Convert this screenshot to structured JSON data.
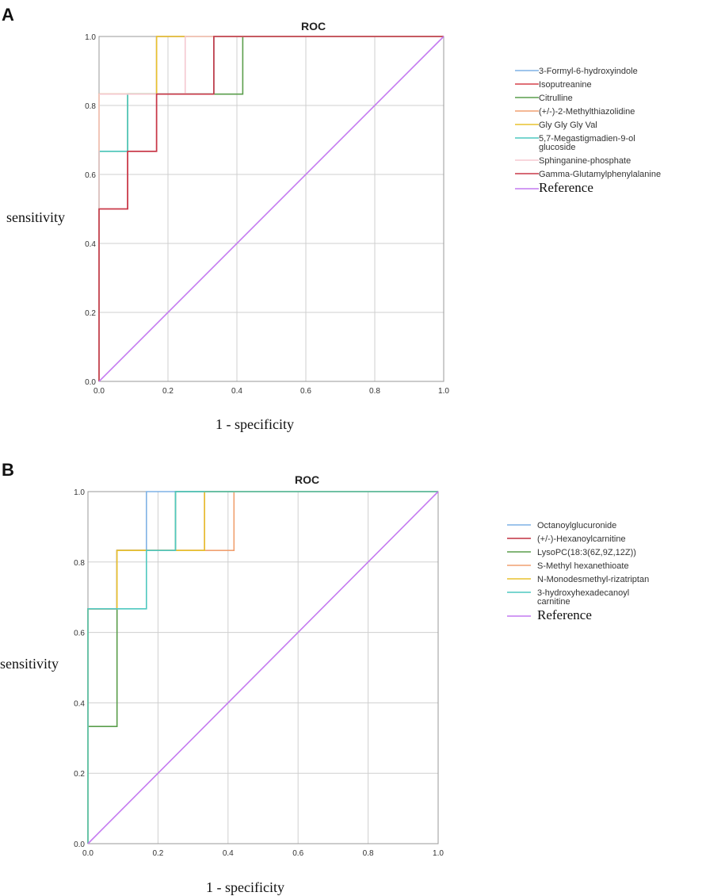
{
  "chart_data": [
    {
      "panel": "A",
      "type": "line",
      "title": "ROC",
      "xlabel": "1 - specificity",
      "ylabel": "sensitivity",
      "xlim": [
        0,
        1
      ],
      "ylim": [
        0,
        1
      ],
      "ticks": [
        "0.0",
        "0.2",
        "0.4",
        "0.6",
        "0.8",
        "1.0"
      ],
      "grid": true,
      "legend_position": "right",
      "series": [
        {
          "name": "3-Formyl-6-hydroxyindole",
          "color": "#7fb2e5",
          "x": [
            0,
            0,
            0.167,
            0.167,
            1
          ],
          "y": [
            0,
            0.833,
            0.833,
            1,
            1
          ]
        },
        {
          "name": "Isoputreanine",
          "color": "#d6404a",
          "x": [
            0,
            0,
            0.083,
            0.083,
            0.167,
            0.167,
            0.333,
            0.333,
            1
          ],
          "y": [
            0,
            0.5,
            0.5,
            0.667,
            0.667,
            0.833,
            0.833,
            1,
            1
          ]
        },
        {
          "name": "Citrulline",
          "color": "#5a9e4b",
          "x": [
            0,
            0,
            0.083,
            0.083,
            0.417,
            0.417,
            1
          ],
          "y": [
            0,
            0.667,
            0.667,
            0.833,
            0.833,
            1,
            1
          ]
        },
        {
          "name": "(+/-)-2-Methylthiazolidine",
          "color": "#f0a070",
          "x": [
            0,
            0,
            0.167,
            0.167,
            1
          ],
          "y": [
            0,
            0.833,
            0.833,
            1,
            1
          ]
        },
        {
          "name": "Gly Gly Gly Val",
          "color": "#e8c22e",
          "x": [
            0,
            0,
            0.167,
            0.167,
            1
          ],
          "y": [
            0,
            0.833,
            0.833,
            1,
            1
          ]
        },
        {
          "name": "5,7-Megastigmadien-9-ol glucoside",
          "color": "#4fc8c0",
          "x": [
            0,
            0,
            0.083,
            0.083,
            0.333,
            0.333,
            1
          ],
          "y": [
            0,
            0.667,
            0.667,
            0.833,
            0.833,
            1,
            1
          ]
        },
        {
          "name": "Sphinganine-phosphate",
          "color": "#f5c8d0",
          "x": [
            0,
            0,
            0.25,
            0.25,
            1
          ],
          "y": [
            0,
            0.833,
            0.833,
            1,
            1
          ]
        },
        {
          "name": "Gamma-Glutamylphenylalanine",
          "color": "#c83848",
          "x": [
            0,
            0,
            0.083,
            0.083,
            0.167,
            0.167,
            0.333,
            0.333,
            1
          ],
          "y": [
            0,
            0.5,
            0.5,
            0.667,
            0.667,
            0.833,
            0.833,
            1,
            1
          ]
        },
        {
          "name": "Reference",
          "color": "#c47af0",
          "x": [
            0,
            1
          ],
          "y": [
            0,
            1
          ]
        }
      ]
    },
    {
      "panel": "B",
      "type": "line",
      "title": "ROC",
      "xlabel": "1 - specificity",
      "ylabel": "sensitivity",
      "xlim": [
        0,
        1
      ],
      "ylim": [
        0,
        1
      ],
      "ticks": [
        "0.0",
        "0.2",
        "0.4",
        "0.6",
        "0.8",
        "1.0"
      ],
      "grid": true,
      "legend_position": "right",
      "series": [
        {
          "name": "Octanoylglucuronide",
          "color": "#7fb2e5",
          "x": [
            0,
            0,
            0.083,
            0.083,
            0.167,
            0.167,
            1
          ],
          "y": [
            0,
            0.667,
            0.667,
            0.833,
            0.833,
            1,
            1
          ]
        },
        {
          "name": "(+/-)-Hexanoylcarnitine",
          "color": "#c03040",
          "x": [
            0,
            0,
            0.083,
            0.083,
            0.333,
            0.333,
            1
          ],
          "y": [
            0,
            0.667,
            0.667,
            0.833,
            0.833,
            1,
            1
          ]
        },
        {
          "name": "LysoPC(18:3(6Z,9Z,12Z))",
          "color": "#5a9e4b",
          "x": [
            0,
            0,
            0.083,
            0.083,
            0.25,
            0.25,
            1
          ],
          "y": [
            0,
            0.333,
            0.333,
            0.833,
            0.833,
            1,
            1
          ]
        },
        {
          "name": "S-Methyl hexanethioate",
          "color": "#f0a070",
          "x": [
            0,
            0,
            0.083,
            0.083,
            0.417,
            0.417,
            1
          ],
          "y": [
            0,
            0.667,
            0.667,
            0.833,
            0.833,
            1,
            1
          ]
        },
        {
          "name": "N-Monodesmethyl-rizatriptan",
          "color": "#e8c22e",
          "x": [
            0,
            0,
            0.083,
            0.083,
            0.333,
            0.333,
            1
          ],
          "y": [
            0,
            0.667,
            0.667,
            0.833,
            0.833,
            1,
            1
          ]
        },
        {
          "name": "3-hydroxyhexadecanoyl carnitine",
          "color": "#4fc8c0",
          "x": [
            0,
            0,
            0.167,
            0.167,
            0.25,
            0.25,
            1
          ],
          "y": [
            0,
            0.667,
            0.667,
            0.833,
            0.833,
            1,
            1
          ]
        },
        {
          "name": "Reference",
          "color": "#c47af0",
          "x": [
            0,
            1
          ],
          "y": [
            0,
            1
          ]
        }
      ]
    }
  ]
}
